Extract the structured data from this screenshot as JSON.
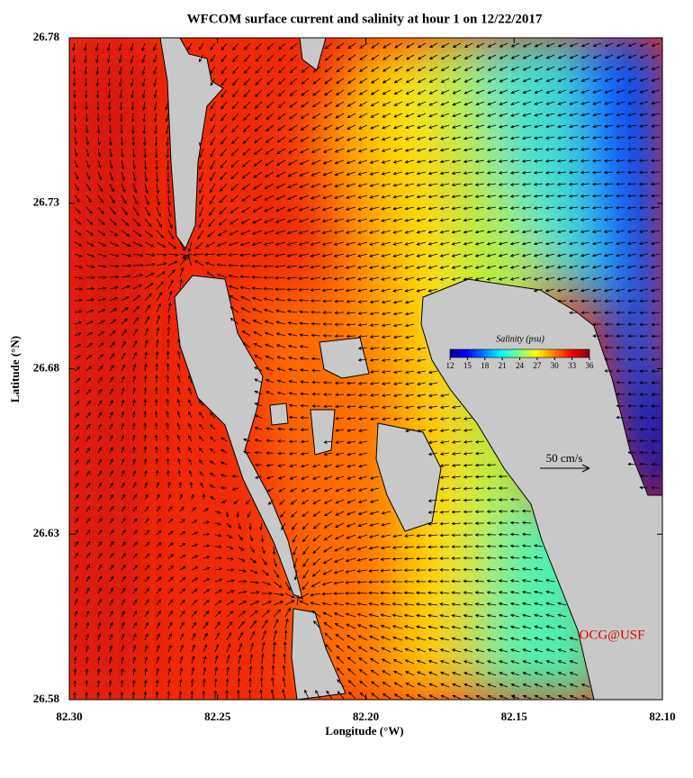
{
  "map": {
    "title": "WFCOM surface current and salinity at hour 1 on 12/22/2017",
    "x_label": "Longitude (°W)",
    "y_label": "Latitude (°N)",
    "xlim": [
      82.3,
      82.1
    ],
    "xticks": [
      {
        "value": 82.3,
        "label": "82.30"
      },
      82.25,
      {
        "value": 82.2,
        "label": "82.20"
      },
      82.15,
      {
        "value": 82.1,
        "label": "82.10"
      }
    ],
    "ylim": [
      26.58,
      26.78
    ],
    "yticks": [
      26.58,
      26.63,
      26.68,
      26.73,
      26.78
    ],
    "colorbar": {
      "title": "Salinity (psu)",
      "range": [
        12,
        36
      ],
      "ticks": [
        12,
        15,
        18,
        21,
        24,
        27,
        30,
        33,
        36
      ]
    },
    "scale_label": "50 cm/s",
    "credit": "OCG@USF"
  }
}
